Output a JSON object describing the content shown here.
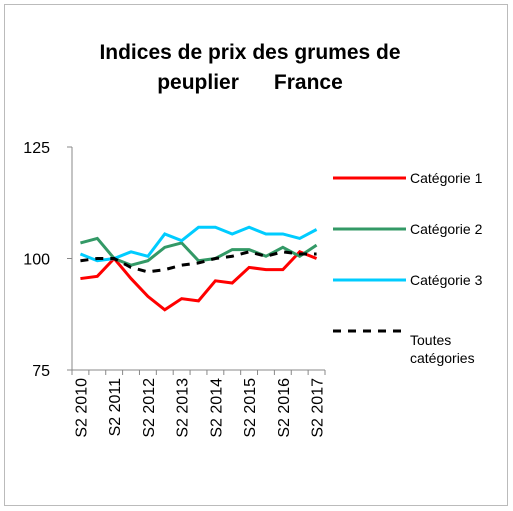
{
  "chart_data": {
    "type": "line",
    "title": "Indices de prix des grumes de peuplier      France",
    "categories": [
      "S2 2010",
      null,
      "S2 2011",
      null,
      "S2 2012",
      null,
      "S2 2013",
      null,
      "S2 2014",
      null,
      "S2 2015",
      null,
      "S2 2016",
      null,
      "S2 2017"
    ],
    "series": [
      {
        "name": "Catégorie 1",
        "color": "#ff0000",
        "dash": false,
        "values": [
          95.5,
          96,
          100,
          95.5,
          91.5,
          88.5,
          91,
          90.5,
          95,
          94.5,
          98,
          97.5,
          97.5,
          101.5,
          100
        ]
      },
      {
        "name": "Catégorie 2",
        "color": "#339966",
        "dash": false,
        "values": [
          103.5,
          104.5,
          100,
          98.5,
          99.5,
          102.5,
          103.5,
          99.5,
          100,
          102,
          102,
          100.5,
          102.5,
          100.5,
          103
        ]
      },
      {
        "name": "Catégorie 3",
        "color": "#00ccff",
        "dash": false,
        "values": [
          101,
          99.5,
          100,
          101.5,
          100.5,
          105.5,
          104,
          107,
          107,
          105.5,
          107,
          105.5,
          105.5,
          104.5,
          106.5
        ]
      },
      {
        "name": "Toutes catégories",
        "color": "#000000",
        "dash": true,
        "values": [
          99.5,
          100,
          100,
          98,
          97,
          97.5,
          98.5,
          99,
          100,
          100.5,
          101.5,
          100.5,
          101.5,
          101,
          101
        ]
      }
    ],
    "ylim": [
      75,
      125
    ],
    "yticks": [
      75,
      100,
      125
    ],
    "grid": false,
    "legend": "right"
  }
}
